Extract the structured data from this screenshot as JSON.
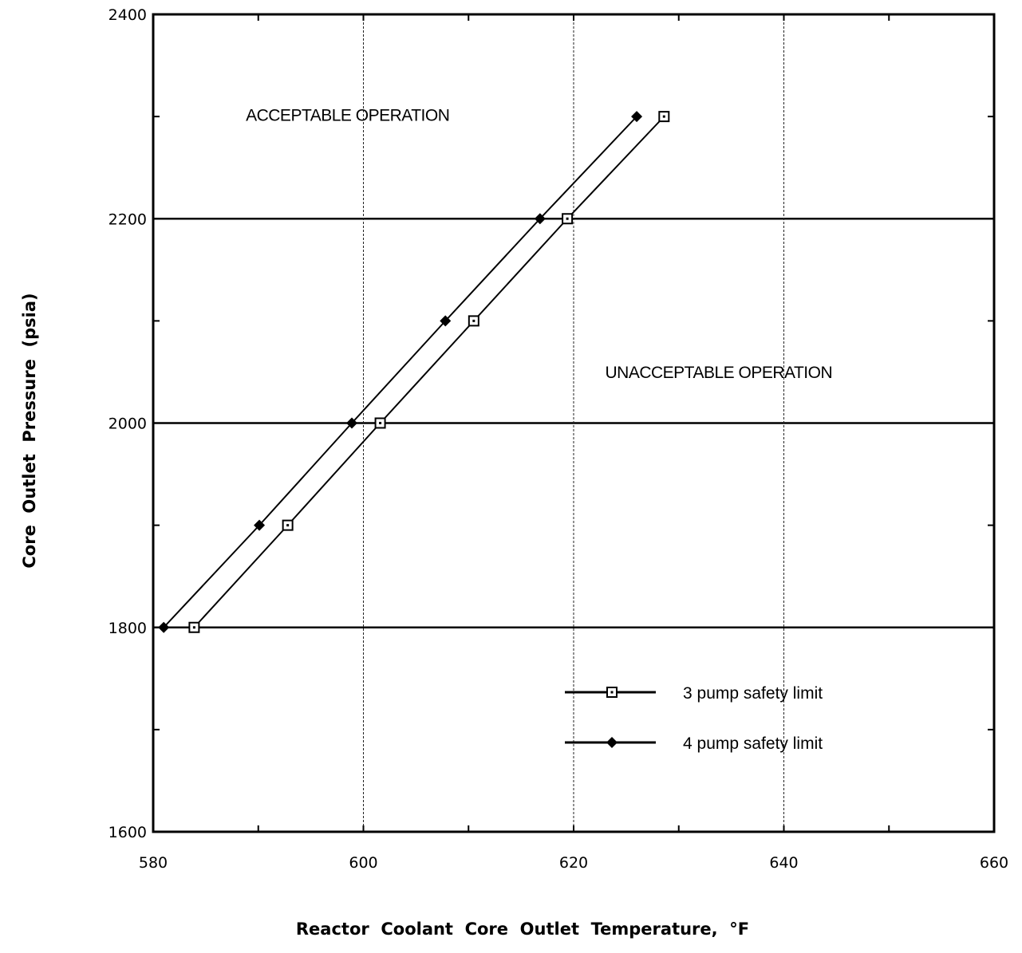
{
  "chart_data": {
    "type": "line",
    "title": "",
    "xlabel": "Reactor  Coolant  Core  Outlet  Temperature,  °F",
    "ylabel": "Core  Outlet  Pressure  (psia)",
    "xlim": [
      580,
      660
    ],
    "ylim": [
      1600,
      2400
    ],
    "x_ticks": [
      580,
      600,
      620,
      640,
      660
    ],
    "y_ticks": [
      1600,
      1800,
      2000,
      2200,
      2400
    ],
    "grid": true,
    "legend_position": "lower-right",
    "annotations": [
      {
        "text": "ACCEPTABLE OPERATION",
        "x": 598.5,
        "y": 2296
      },
      {
        "text": "UNACCEPTABLE OPERATION",
        "x": 633.8,
        "y": 2044
      }
    ],
    "series": [
      {
        "name": "3 pump safety limit",
        "marker": "open-square",
        "points": [
          {
            "x": 583.9,
            "y": 1800
          },
          {
            "x": 592.8,
            "y": 1900
          },
          {
            "x": 601.6,
            "y": 2000
          },
          {
            "x": 610.5,
            "y": 2100
          },
          {
            "x": 619.4,
            "y": 2200
          },
          {
            "x": 628.6,
            "y": 2300
          }
        ]
      },
      {
        "name": "4 pump safety limit",
        "marker": "filled-diamond",
        "points": [
          {
            "x": 581.0,
            "y": 1800
          },
          {
            "x": 590.1,
            "y": 1900
          },
          {
            "x": 598.9,
            "y": 2000
          },
          {
            "x": 607.8,
            "y": 2100
          },
          {
            "x": 616.8,
            "y": 2200
          },
          {
            "x": 626.0,
            "y": 2300
          }
        ]
      }
    ]
  }
}
